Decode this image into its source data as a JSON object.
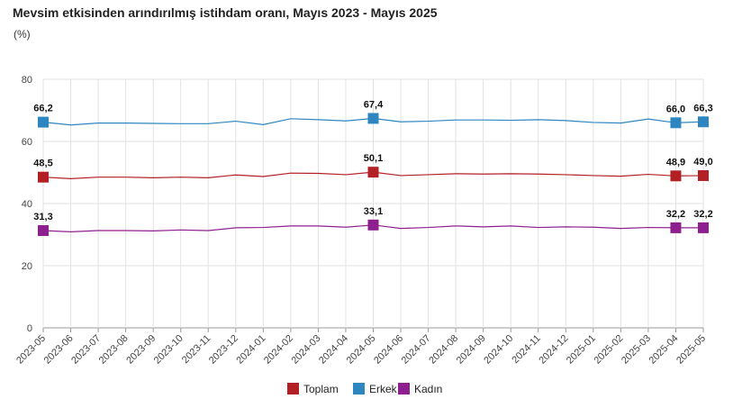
{
  "header": {
    "title": "Mevsim etkisinden arındırılmış istihdam oranı, Mayıs 2023 - Mayıs 2025",
    "unit": "(%)"
  },
  "chart_data": {
    "type": "line",
    "title": "Mevsim etkisinden arındırılmış istihdam oranı, Mayıs 2023 - Mayıs 2025",
    "ylabel": "(%)",
    "xlabel": "",
    "ylim": [
      0,
      80
    ],
    "yticks": [
      "0",
      "20",
      "40",
      "60",
      "80"
    ],
    "grid": true,
    "legend_position": "bottom",
    "categories": [
      "2023-05",
      "2023-06",
      "2023-07",
      "2023-08",
      "2023-09",
      "2023-10",
      "2023-11",
      "2023-12",
      "2024-01",
      "2024-02",
      "2024-03",
      "2024-04",
      "2024-05",
      "2024-06",
      "2024-07",
      "2024-08",
      "2024-09",
      "2024-10",
      "2024-11",
      "2024-12",
      "2025-01",
      "2025-02",
      "2025-03",
      "2025-04",
      "2025-05"
    ],
    "series": [
      {
        "name": "Toplam",
        "color": "#b22025",
        "values": [
          48.5,
          48.0,
          48.5,
          48.5,
          48.3,
          48.5,
          48.3,
          49.2,
          48.7,
          49.8,
          49.7,
          49.3,
          50.1,
          49.0,
          49.3,
          49.6,
          49.5,
          49.6,
          49.5,
          49.3,
          49.0,
          48.8,
          49.4,
          48.9,
          49.0
        ],
        "labels": {
          "0": "48,5",
          "12": "50,1",
          "23": "48,9",
          "24": "49,0"
        }
      },
      {
        "name": "Erkek",
        "color": "#2e86c1",
        "values": [
          66.2,
          65.3,
          65.9,
          65.9,
          65.8,
          65.7,
          65.7,
          66.5,
          65.4,
          67.3,
          67.0,
          66.6,
          67.4,
          66.3,
          66.5,
          66.9,
          66.9,
          66.8,
          67.0,
          66.7,
          66.1,
          65.9,
          67.2,
          66.0,
          66.3
        ],
        "labels": {
          "0": "66,2",
          "12": "67,4",
          "23": "66,0",
          "24": "66,3"
        }
      },
      {
        "name": "Kadın",
        "color": "#8e1f8e",
        "values": [
          31.3,
          30.9,
          31.3,
          31.3,
          31.2,
          31.5,
          31.3,
          32.2,
          32.3,
          32.8,
          32.8,
          32.4,
          33.1,
          32.0,
          32.3,
          32.8,
          32.5,
          32.8,
          32.3,
          32.5,
          32.4,
          32.0,
          32.3,
          32.2,
          32.2
        ],
        "labels": {
          "0": "31,3",
          "12": "33,1",
          "23": "32,2",
          "24": "32,2"
        }
      }
    ]
  }
}
